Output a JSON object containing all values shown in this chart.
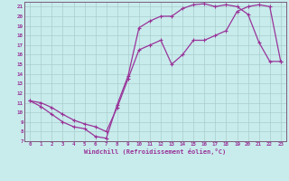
{
  "xlabel": "Windchill (Refroidissement éolien,°C)",
  "bg_color": "#c8ecec",
  "line_color": "#993399",
  "grid_color": "#aacccc",
  "spine_color": "#7b5b7b",
  "xlim": [
    -0.5,
    23.5
  ],
  "ylim": [
    7,
    21.5
  ],
  "xticks": [
    0,
    1,
    2,
    3,
    4,
    5,
    6,
    7,
    8,
    9,
    10,
    11,
    12,
    13,
    14,
    15,
    16,
    17,
    18,
    19,
    20,
    21,
    22,
    23
  ],
  "yticks": [
    7,
    8,
    9,
    10,
    11,
    12,
    13,
    14,
    15,
    16,
    17,
    18,
    19,
    20,
    21
  ],
  "line1_x": [
    0,
    1,
    2,
    3,
    4,
    5,
    6,
    7,
    8,
    9,
    10,
    11,
    12,
    13,
    14,
    15,
    16,
    17,
    18,
    19,
    20,
    21,
    22,
    23
  ],
  "line1_y": [
    11.2,
    10.6,
    9.8,
    9.0,
    8.5,
    8.3,
    7.5,
    7.3,
    10.8,
    13.8,
    18.8,
    19.5,
    20.0,
    20.0,
    20.8,
    21.2,
    21.3,
    21.0,
    21.2,
    21.0,
    20.2,
    17.3,
    15.3,
    15.3
  ],
  "line2_x": [
    0,
    1,
    2,
    3,
    4,
    5,
    6,
    7,
    8,
    9,
    10,
    11,
    12,
    13,
    14,
    15,
    16,
    17,
    18,
    19,
    20,
    21,
    22,
    23
  ],
  "line2_y": [
    11.2,
    11.0,
    10.5,
    9.8,
    9.2,
    8.8,
    8.5,
    8.0,
    10.5,
    13.5,
    16.5,
    17.0,
    17.5,
    15.0,
    16.0,
    17.5,
    17.5,
    18.0,
    18.5,
    20.5,
    21.0,
    21.2,
    21.0,
    15.3
  ]
}
